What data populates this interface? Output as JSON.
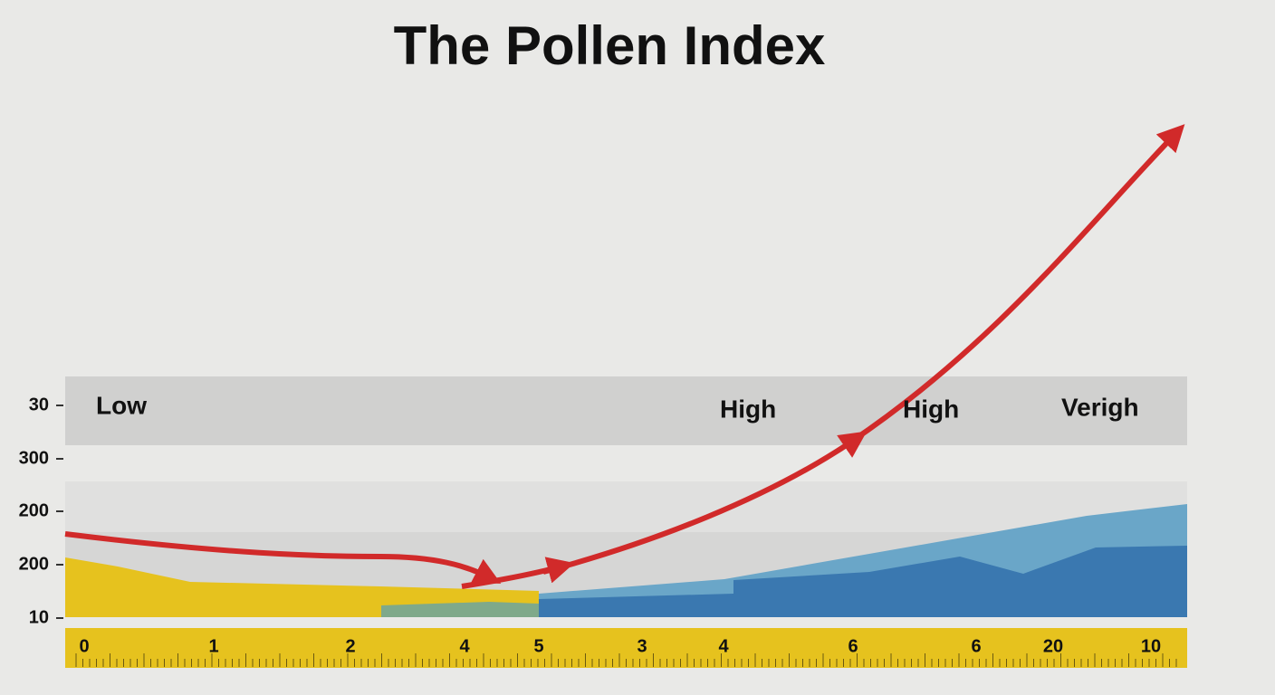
{
  "title": "The Pollen Index",
  "y_labels": [
    "30",
    "300",
    "200",
    "200",
    "10"
  ],
  "band_labels": [
    "Low",
    "High",
    "High",
    "Verigh"
  ],
  "ruler_labels": [
    "0",
    "1",
    "2",
    "4",
    "5",
    "3",
    "4",
    "6",
    "6",
    "20",
    "10"
  ]
}
